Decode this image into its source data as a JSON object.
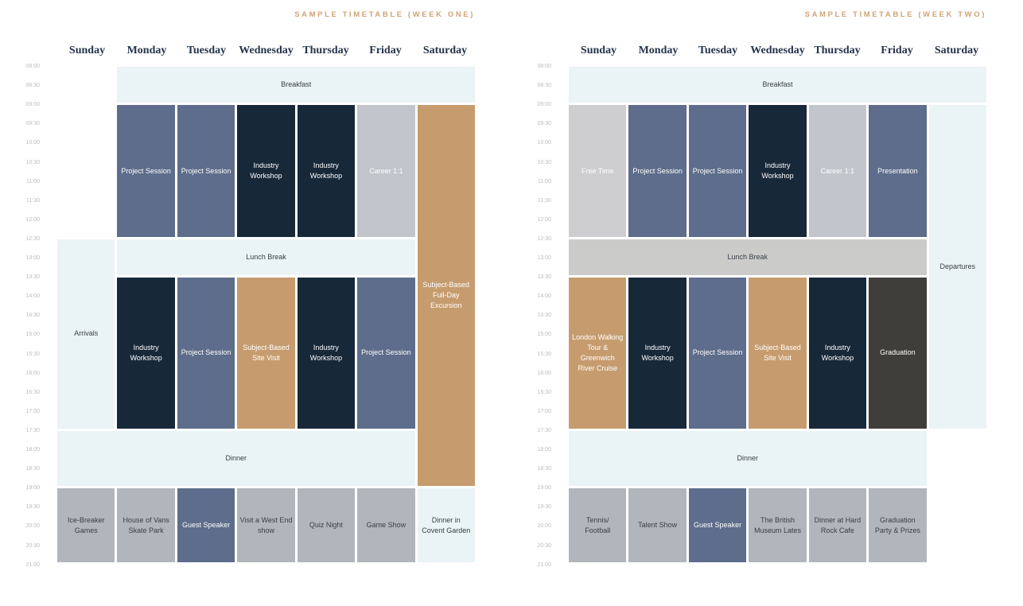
{
  "page": {
    "background": "#ffffff"
  },
  "palette": {
    "band": "#eaf3f6",
    "session": "#5d6d8b",
    "workshop": "#172839",
    "career": "#c2c5cc",
    "freetime": "#cecdd0",
    "lunchgray": "#cbcbca",
    "tan": "#c69c6e",
    "evening": "#b1b5bc",
    "graduation": "#3f3e3b",
    "title_text": "#cfa376",
    "day_header_text": "#24344b",
    "time_label_text": "#b8bcc3",
    "dark_cell_text": "#3a3f46",
    "light_cell_text": "#ffffff"
  },
  "timetables": [
    {
      "title": "SAMPLE TIMETABLE (WEEK ONE)",
      "days": [
        "Sunday",
        "Monday",
        "Tuesday",
        "Wednesday",
        "Thursday",
        "Friday",
        "Saturday"
      ],
      "times": [
        "08:00",
        "08:30",
        "09:00",
        "09:30",
        "10:00",
        "10:30",
        "11:00",
        "11:30",
        "12:00",
        "12:30",
        "13:00",
        "13:30",
        "14:00",
        "14:30",
        "15:00",
        "15:30",
        "16:00",
        "16:30",
        "17:00",
        "17:30",
        "18:00",
        "18:30",
        "19:00",
        "19:30",
        "20:00",
        "20:30",
        "21:00"
      ],
      "blocks": [
        {
          "label": "Breakfast",
          "day_from": 1,
          "day_to": 6,
          "start": "08:00",
          "end": "09:00",
          "color": "band",
          "tone": "dark"
        },
        {
          "label": "Project Session",
          "day_from": 1,
          "day_to": 1,
          "start": "09:00",
          "end": "12:30",
          "color": "session",
          "tone": "light"
        },
        {
          "label": "Project Session",
          "day_from": 2,
          "day_to": 2,
          "start": "09:00",
          "end": "12:30",
          "color": "session",
          "tone": "light"
        },
        {
          "label": "Industry Workshop",
          "day_from": 3,
          "day_to": 3,
          "start": "09:00",
          "end": "12:30",
          "color": "workshop",
          "tone": "light"
        },
        {
          "label": "Industry Workshop",
          "day_from": 4,
          "day_to": 4,
          "start": "09:00",
          "end": "12:30",
          "color": "workshop",
          "tone": "light"
        },
        {
          "label": "Career 1:1",
          "day_from": 5,
          "day_to": 5,
          "start": "09:00",
          "end": "12:30",
          "color": "career",
          "tone": "light"
        },
        {
          "label": "Subject-Based Full-Day Excursion",
          "day_from": 6,
          "day_to": 6,
          "start": "09:00",
          "end": "19:00",
          "color": "tan",
          "tone": "light"
        },
        {
          "label": "Arrivals",
          "day_from": 0,
          "day_to": 0,
          "start": "12:30",
          "end": "17:30",
          "color": "band",
          "tone": "dark"
        },
        {
          "label": "Lunch Break",
          "day_from": 1,
          "day_to": 5,
          "start": "12:30",
          "end": "13:30",
          "color": "band",
          "tone": "dark"
        },
        {
          "label": "Industry Workshop",
          "day_from": 1,
          "day_to": 1,
          "start": "13:30",
          "end": "17:30",
          "color": "workshop",
          "tone": "light"
        },
        {
          "label": "Project Session",
          "day_from": 2,
          "day_to": 2,
          "start": "13:30",
          "end": "17:30",
          "color": "session",
          "tone": "light"
        },
        {
          "label": "Subject-Based Site Visit",
          "day_from": 3,
          "day_to": 3,
          "start": "13:30",
          "end": "17:30",
          "color": "tan",
          "tone": "light"
        },
        {
          "label": "Industry Workshop",
          "day_from": 4,
          "day_to": 4,
          "start": "13:30",
          "end": "17:30",
          "color": "workshop",
          "tone": "light"
        },
        {
          "label": "Project Session",
          "day_from": 5,
          "day_to": 5,
          "start": "13:30",
          "end": "17:30",
          "color": "session",
          "tone": "light"
        },
        {
          "label": "Dinner",
          "day_from": 0,
          "day_to": 5,
          "start": "17:30",
          "end": "19:00",
          "color": "band",
          "tone": "dark"
        },
        {
          "label": "Ice-Breaker Games",
          "day_from": 0,
          "day_to": 0,
          "start": "19:00",
          "end": "21:00",
          "color": "evening",
          "tone": "dark"
        },
        {
          "label": "House of Vans Skate Park",
          "day_from": 1,
          "day_to": 1,
          "start": "19:00",
          "end": "21:00",
          "color": "evening",
          "tone": "dark"
        },
        {
          "label": "Guest Speaker",
          "day_from": 2,
          "day_to": 2,
          "start": "19:00",
          "end": "21:00",
          "color": "session",
          "tone": "light"
        },
        {
          "label": "Visit a West End show",
          "day_from": 3,
          "day_to": 3,
          "start": "19:00",
          "end": "21:00",
          "color": "evening",
          "tone": "dark"
        },
        {
          "label": "Quiz Night",
          "day_from": 4,
          "day_to": 4,
          "start": "19:00",
          "end": "21:00",
          "color": "evening",
          "tone": "dark"
        },
        {
          "label": "Game Show",
          "day_from": 5,
          "day_to": 5,
          "start": "19:00",
          "end": "21:00",
          "color": "evening",
          "tone": "dark"
        },
        {
          "label": "Dinner in Covent Garden",
          "day_from": 6,
          "day_to": 6,
          "start": "19:00",
          "end": "21:00",
          "color": "band",
          "tone": "dark"
        }
      ]
    },
    {
      "title": "SAMPLE TIMETABLE (WEEK TWO)",
      "days": [
        "Sunday",
        "Monday",
        "Tuesday",
        "Wednesday",
        "Thursday",
        "Friday",
        "Saturday"
      ],
      "times": [
        "08:00",
        "08:30",
        "09:00",
        "09:30",
        "10:00",
        "10:30",
        "11:00",
        "11:30",
        "12:00",
        "12:30",
        "13:00",
        "13:30",
        "14:00",
        "14:30",
        "15:00",
        "15:30",
        "16:00",
        "16:30",
        "17:00",
        "17:30",
        "18:00",
        "18:30",
        "19:00",
        "19:30",
        "20:00",
        "20:30",
        "21:00"
      ],
      "blocks": [
        {
          "label": "Breakfast",
          "day_from": 0,
          "day_to": 6,
          "start": "08:00",
          "end": "09:00",
          "color": "band",
          "tone": "dark"
        },
        {
          "label": "Free Time",
          "day_from": 0,
          "day_to": 0,
          "start": "09:00",
          "end": "12:30",
          "color": "freetime",
          "tone": "light"
        },
        {
          "label": "Project Session",
          "day_from": 1,
          "day_to": 1,
          "start": "09:00",
          "end": "12:30",
          "color": "session",
          "tone": "light"
        },
        {
          "label": "Project Session",
          "day_from": 2,
          "day_to": 2,
          "start": "09:00",
          "end": "12:30",
          "color": "session",
          "tone": "light"
        },
        {
          "label": "Industry Workshop",
          "day_from": 3,
          "day_to": 3,
          "start": "09:00",
          "end": "12:30",
          "color": "workshop",
          "tone": "light"
        },
        {
          "label": "Career 1:1",
          "day_from": 4,
          "day_to": 4,
          "start": "09:00",
          "end": "12:30",
          "color": "career",
          "tone": "light"
        },
        {
          "label": "Presentation",
          "day_from": 5,
          "day_to": 5,
          "start": "09:00",
          "end": "12:30",
          "color": "session",
          "tone": "light"
        },
        {
          "label": "Departures",
          "day_from": 6,
          "day_to": 6,
          "start": "09:00",
          "end": "17:30",
          "color": "band",
          "tone": "dark"
        },
        {
          "label": "Lunch Break",
          "day_from": 0,
          "day_to": 5,
          "start": "12:30",
          "end": "13:30",
          "color": "lunchgray",
          "tone": "dark"
        },
        {
          "label": "London Walking Tour & Greenwich River Cruise",
          "day_from": 0,
          "day_to": 0,
          "start": "13:30",
          "end": "17:30",
          "color": "tan",
          "tone": "light"
        },
        {
          "label": "Industry Workshop",
          "day_from": 1,
          "day_to": 1,
          "start": "13:30",
          "end": "17:30",
          "color": "workshop",
          "tone": "light"
        },
        {
          "label": "Project Session",
          "day_from": 2,
          "day_to": 2,
          "start": "13:30",
          "end": "17:30",
          "color": "session",
          "tone": "light"
        },
        {
          "label": "Subject-Based Site Visit",
          "day_from": 3,
          "day_to": 3,
          "start": "13:30",
          "end": "17:30",
          "color": "tan",
          "tone": "light"
        },
        {
          "label": "Industry Workshop",
          "day_from": 4,
          "day_to": 4,
          "start": "13:30",
          "end": "17:30",
          "color": "workshop",
          "tone": "light"
        },
        {
          "label": "Graduation",
          "day_from": 5,
          "day_to": 5,
          "start": "13:30",
          "end": "17:30",
          "color": "graduation",
          "tone": "light"
        },
        {
          "label": "Dinner",
          "day_from": 0,
          "day_to": 5,
          "start": "17:30",
          "end": "19:00",
          "color": "band",
          "tone": "dark"
        },
        {
          "label": "Tennis/\nFootball",
          "day_from": 0,
          "day_to": 0,
          "start": "19:00",
          "end": "21:00",
          "color": "evening",
          "tone": "dark"
        },
        {
          "label": "Talent Show",
          "day_from": 1,
          "day_to": 1,
          "start": "19:00",
          "end": "21:00",
          "color": "evening",
          "tone": "dark"
        },
        {
          "label": "Guest Speaker",
          "day_from": 2,
          "day_to": 2,
          "start": "19:00",
          "end": "21:00",
          "color": "session",
          "tone": "light"
        },
        {
          "label": "The British Museum Lates",
          "day_from": 3,
          "day_to": 3,
          "start": "19:00",
          "end": "21:00",
          "color": "evening",
          "tone": "dark"
        },
        {
          "label": "Dinner at Hard Rock Cafe",
          "day_from": 4,
          "day_to": 4,
          "start": "19:00",
          "end": "21:00",
          "color": "evening",
          "tone": "dark"
        },
        {
          "label": "Graduation Party & Prizes",
          "day_from": 5,
          "day_to": 5,
          "start": "19:00",
          "end": "21:00",
          "color": "evening",
          "tone": "dark"
        }
      ]
    }
  ]
}
